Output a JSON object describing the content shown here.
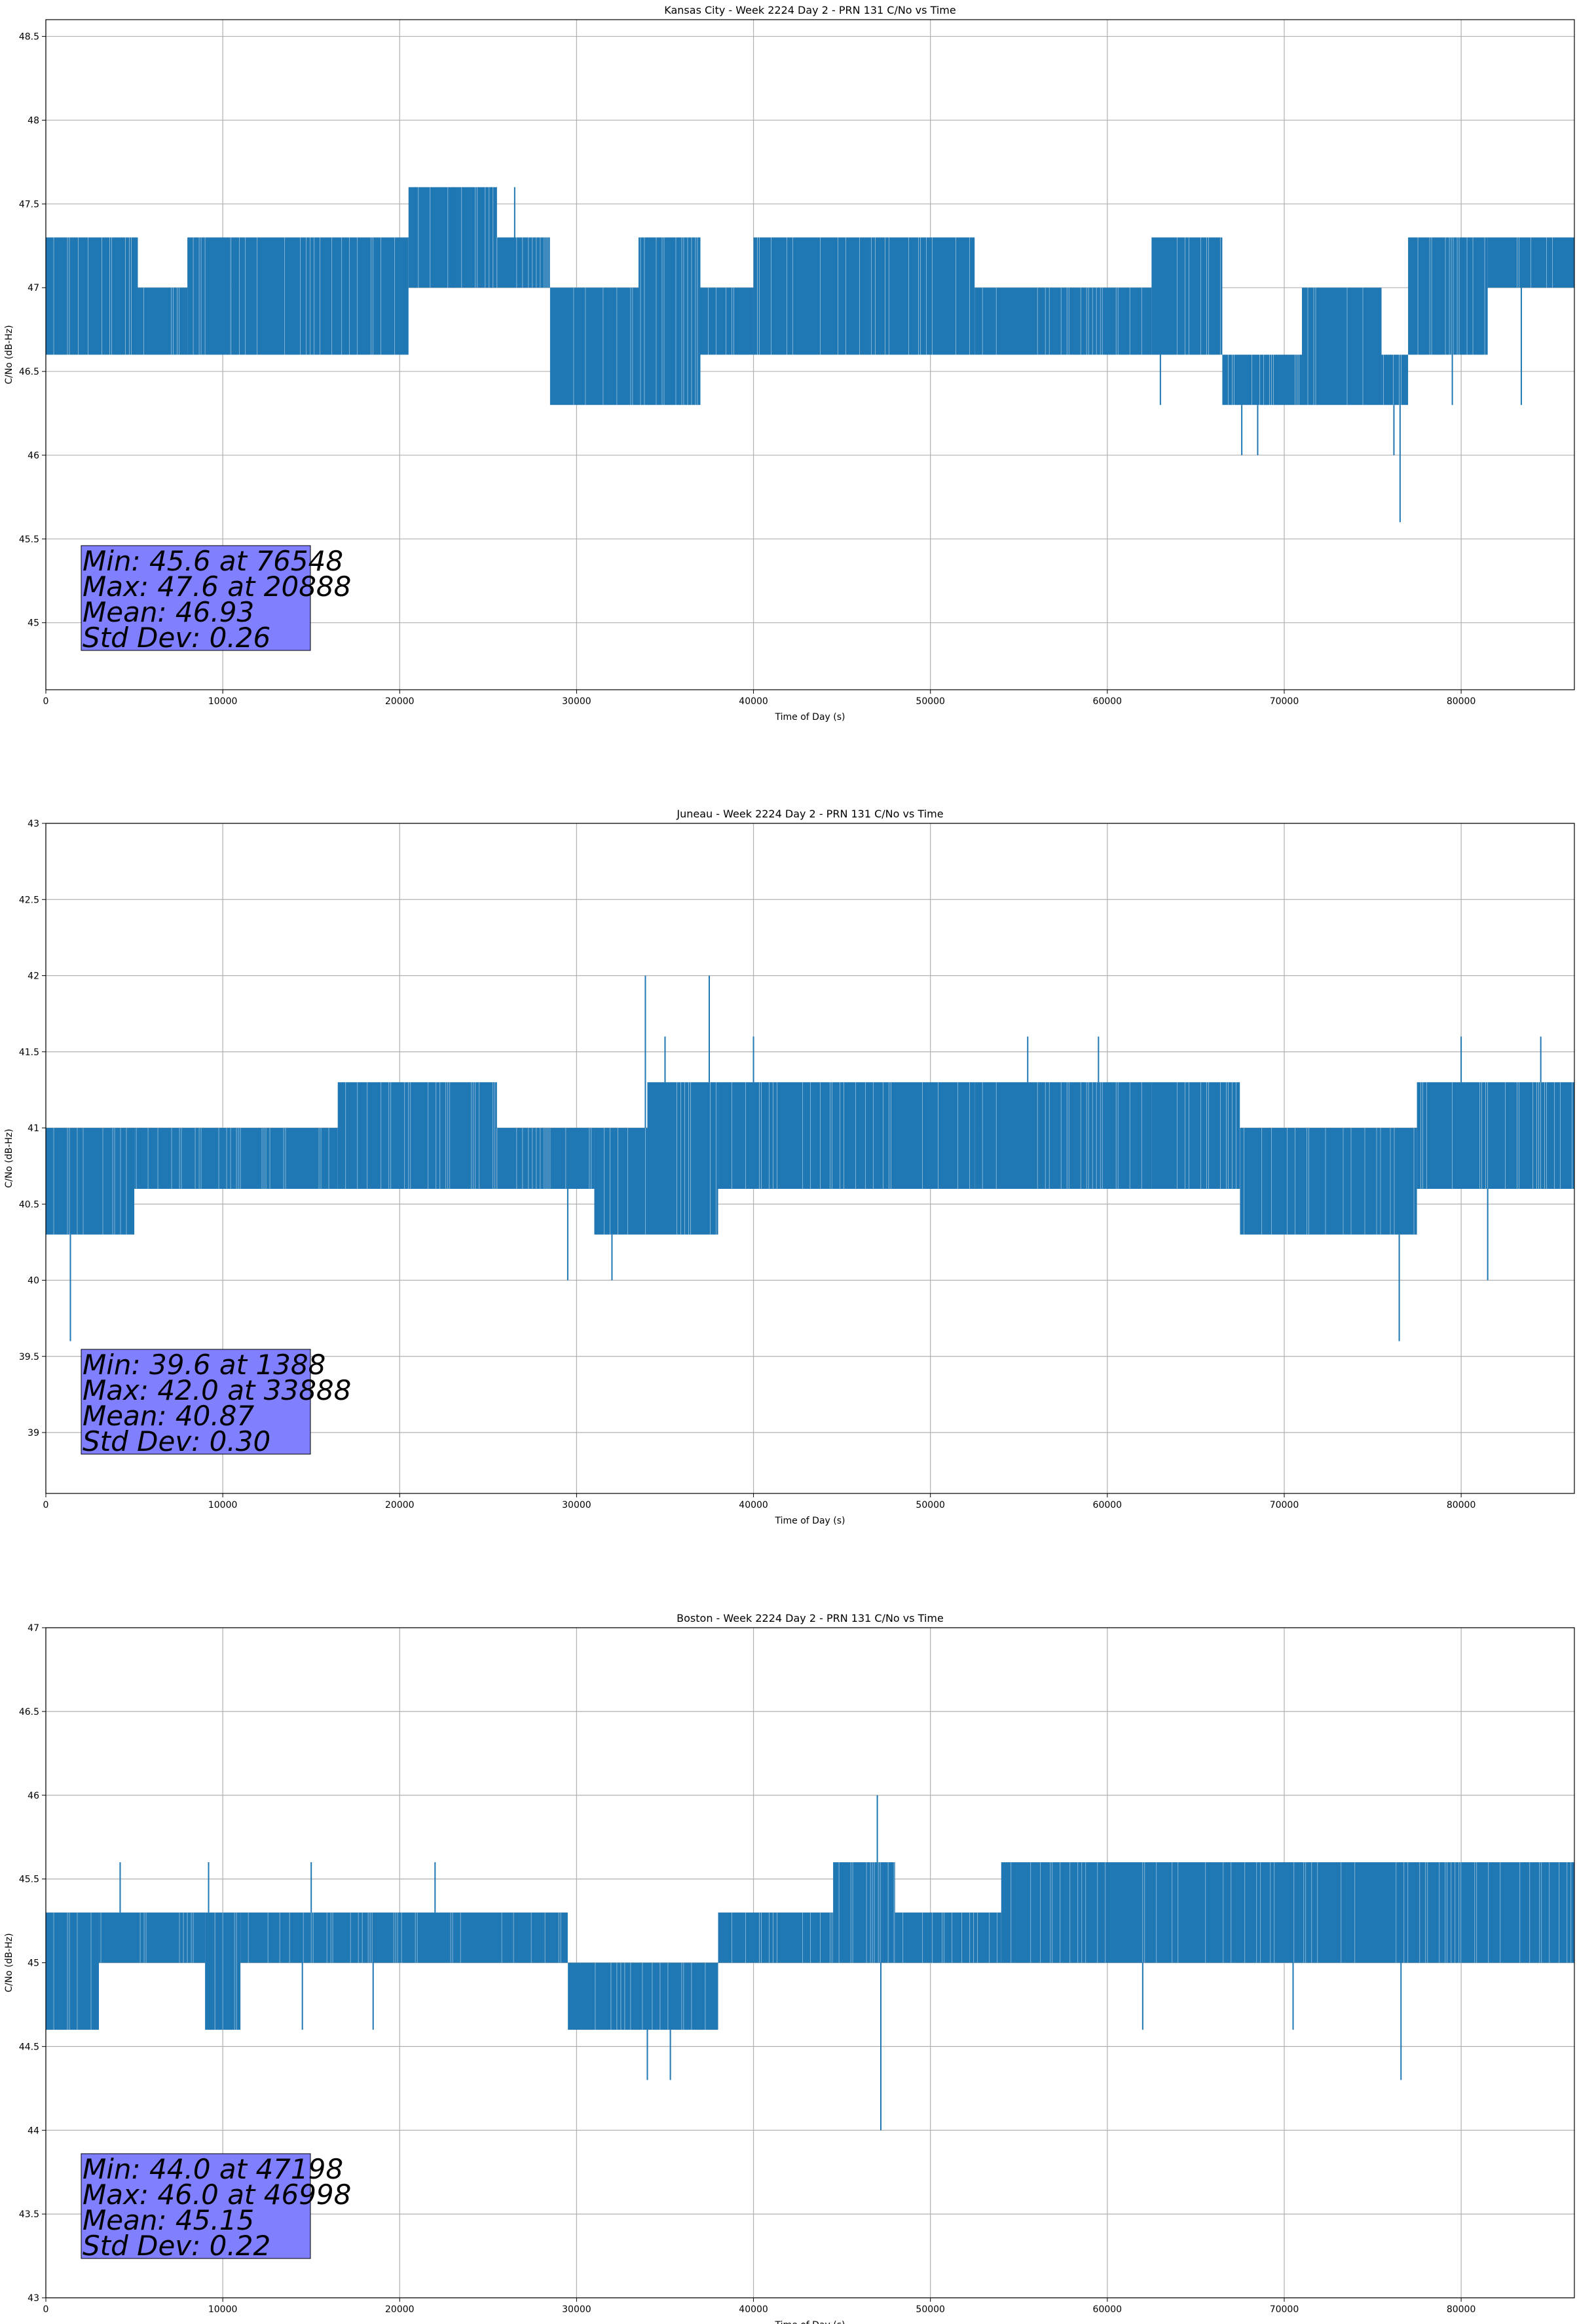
{
  "colors": {
    "line": "#1f77b4",
    "grid": "#b0b0b0",
    "statbox": "#8080ff"
  },
  "chart_data": [
    {
      "type": "line",
      "title": "Kansas City - Week 2224 Day 2 - PRN 131 C/No vs Time",
      "xlabel": "Time of Day (s)",
      "ylabel": "C/No (dB-Hz)",
      "xlim": [
        0,
        86400
      ],
      "ylim": [
        44.6,
        48.6
      ],
      "xticks": [
        0,
        10000,
        20000,
        30000,
        40000,
        50000,
        60000,
        70000,
        80000
      ],
      "yticks": [
        45.0,
        45.5,
        46.0,
        46.5,
        47.0,
        47.5,
        48.0,
        48.5
      ],
      "grid": true,
      "stats": [
        "Min: 45.6 at 76548",
        "Max: 47.6 at 20888",
        "Mean: 46.93",
        "Std Dev: 0.26"
      ],
      "segments": [
        {
          "x": [
            0,
            1500
          ],
          "low": 46.6,
          "high": 47.3
        },
        {
          "x": [
            1500,
            5200
          ],
          "low": 46.6,
          "high": 47.3
        },
        {
          "x": [
            5200,
            8000
          ],
          "low": 46.6,
          "high": 47.0
        },
        {
          "x": [
            8000,
            10500
          ],
          "low": 46.6,
          "high": 47.3
        },
        {
          "x": [
            10500,
            20500
          ],
          "low": 46.6,
          "high": 47.3
        },
        {
          "x": [
            20500,
            25500
          ],
          "low": 47.0,
          "high": 47.6
        },
        {
          "x": [
            25500,
            28500
          ],
          "low": 47.0,
          "high": 47.3
        },
        {
          "x": [
            28500,
            33500
          ],
          "low": 46.3,
          "high": 47.0
        },
        {
          "x": [
            33500,
            37000
          ],
          "low": 46.3,
          "high": 47.3
        },
        {
          "x": [
            37000,
            40000
          ],
          "low": 46.6,
          "high": 47.0
        },
        {
          "x": [
            40000,
            52500
          ],
          "low": 46.6,
          "high": 47.3
        },
        {
          "x": [
            52500,
            62500
          ],
          "low": 46.6,
          "high": 47.0
        },
        {
          "x": [
            62500,
            66500
          ],
          "low": 46.6,
          "high": 47.3
        },
        {
          "x": [
            66500,
            71000
          ],
          "low": 46.3,
          "high": 46.6
        },
        {
          "x": [
            71000,
            75500
          ],
          "low": 46.3,
          "high": 47.0
        },
        {
          "x": [
            75500,
            77000
          ],
          "low": 46.3,
          "high": 46.6
        },
        {
          "x": [
            77000,
            81500
          ],
          "low": 46.6,
          "high": 47.3
        },
        {
          "x": [
            81500,
            86400
          ],
          "low": 47.0,
          "high": 47.3
        }
      ],
      "spikes": [
        [
          20888,
          47.6
        ],
        [
          23000,
          47.6
        ],
        [
          25200,
          47.6
        ],
        [
          67600,
          46.0
        ],
        [
          68500,
          46.0
        ],
        [
          76200,
          46.0
        ],
        [
          76548,
          45.6
        ],
        [
          63000,
          46.3
        ],
        [
          79500,
          46.3
        ],
        [
          83400,
          46.3
        ],
        [
          26500,
          47.6
        ]
      ]
    },
    {
      "type": "line",
      "title": "Juneau - Week 2224 Day 2 - PRN 131 C/No vs Time",
      "xlabel": "Time of Day (s)",
      "ylabel": "C/No (dB-Hz)",
      "xlim": [
        0,
        86400
      ],
      "ylim": [
        38.6,
        43.0
      ],
      "xticks": [
        0,
        10000,
        20000,
        30000,
        40000,
        50000,
        60000,
        70000,
        80000
      ],
      "yticks": [
        39.0,
        39.5,
        40.0,
        40.5,
        41.0,
        41.5,
        42.0,
        42.5,
        43.0
      ],
      "grid": true,
      "stats": [
        "Min: 39.6 at 1388",
        "Max: 42.0 at 33888",
        "Mean: 40.87",
        "Std Dev: 0.30"
      ],
      "segments": [
        {
          "x": [
            0,
            2000
          ],
          "low": 40.3,
          "high": 41.0
        },
        {
          "x": [
            2000,
            5000
          ],
          "low": 40.3,
          "high": 41.0
        },
        {
          "x": [
            5000,
            16500
          ],
          "low": 40.6,
          "high": 41.0
        },
        {
          "x": [
            16500,
            25500
          ],
          "low": 40.6,
          "high": 41.3
        },
        {
          "x": [
            25500,
            31000
          ],
          "low": 40.6,
          "high": 41.0
        },
        {
          "x": [
            31000,
            34000
          ],
          "low": 40.3,
          "high": 41.0
        },
        {
          "x": [
            34000,
            38000
          ],
          "low": 40.3,
          "high": 41.3
        },
        {
          "x": [
            38000,
            52500
          ],
          "low": 40.6,
          "high": 41.3
        },
        {
          "x": [
            52500,
            62500
          ],
          "low": 40.6,
          "high": 41.3
        },
        {
          "x": [
            62500,
            67500
          ],
          "low": 40.6,
          "high": 41.3
        },
        {
          "x": [
            67500,
            72000
          ],
          "low": 40.3,
          "high": 41.0
        },
        {
          "x": [
            72000,
            77500
          ],
          "low": 40.3,
          "high": 41.0
        },
        {
          "x": [
            77500,
            86400
          ],
          "low": 40.6,
          "high": 41.3
        }
      ],
      "spikes": [
        [
          1388,
          39.6
        ],
        [
          33888,
          42.0
        ],
        [
          37500,
          42.0
        ],
        [
          76500,
          39.6
        ],
        [
          35000,
          41.6
        ],
        [
          40000,
          41.6
        ],
        [
          55500,
          41.6
        ],
        [
          59500,
          41.6
        ],
        [
          80000,
          41.6
        ],
        [
          84500,
          41.6
        ],
        [
          81500,
          40.0
        ],
        [
          29500,
          40.0
        ],
        [
          32000,
          40.0
        ]
      ]
    },
    {
      "type": "line",
      "title": "Boston - Week 2224 Day 2 - PRN 131 C/No vs Time",
      "xlabel": "Time of Day (s)",
      "ylabel": "C/No (dB-Hz)",
      "xlim": [
        0,
        86400
      ],
      "ylim": [
        43.0,
        47.0
      ],
      "xticks": [
        0,
        10000,
        20000,
        30000,
        40000,
        50000,
        60000,
        70000,
        80000
      ],
      "yticks": [
        43.0,
        43.5,
        44.0,
        44.5,
        45.0,
        45.5,
        46.0,
        46.5,
        47.0
      ],
      "grid": true,
      "stats": [
        "Min: 44.0 at 47198",
        "Max: 46.0 at 46998",
        "Mean: 45.15",
        "Std Dev: 0.22"
      ],
      "segments": [
        {
          "x": [
            0,
            3000
          ],
          "low": 44.6,
          "high": 45.3
        },
        {
          "x": [
            3000,
            9000
          ],
          "low": 45.0,
          "high": 45.3
        },
        {
          "x": [
            9000,
            11000
          ],
          "low": 44.6,
          "high": 45.3
        },
        {
          "x": [
            11000,
            29500
          ],
          "low": 45.0,
          "high": 45.3
        },
        {
          "x": [
            29500,
            38000
          ],
          "low": 44.6,
          "high": 45.0
        },
        {
          "x": [
            38000,
            44500
          ],
          "low": 45.0,
          "high": 45.3
        },
        {
          "x": [
            44500,
            48000
          ],
          "low": 45.0,
          "high": 45.6
        },
        {
          "x": [
            48000,
            54000
          ],
          "low": 45.0,
          "high": 45.3
        },
        {
          "x": [
            54000,
            86400
          ],
          "low": 45.0,
          "high": 45.6
        }
      ],
      "spikes": [
        [
          46998,
          46.0
        ],
        [
          47198,
          44.0
        ],
        [
          34000,
          44.3
        ],
        [
          35300,
          44.3
        ],
        [
          76600,
          44.3
        ],
        [
          10000,
          44.6
        ],
        [
          14500,
          44.6
        ],
        [
          18500,
          44.6
        ],
        [
          62000,
          44.6
        ],
        [
          70500,
          44.6
        ],
        [
          4200,
          45.6
        ],
        [
          9200,
          45.6
        ],
        [
          15000,
          45.6
        ],
        [
          22000,
          45.6
        ]
      ]
    }
  ]
}
